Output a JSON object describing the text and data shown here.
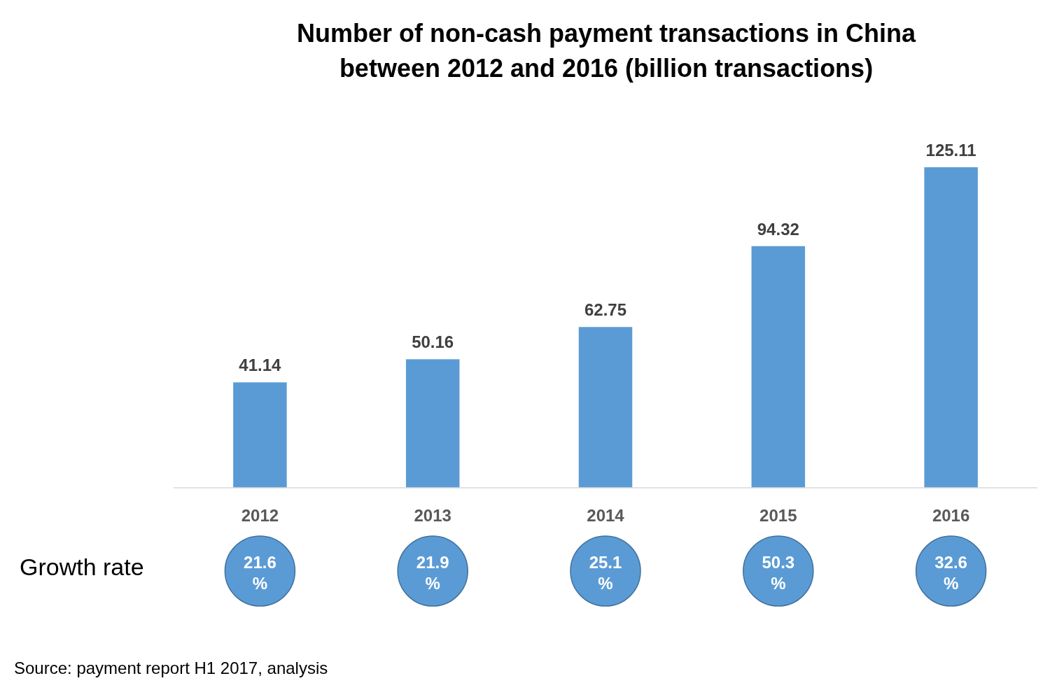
{
  "chart_data": {
    "type": "bar",
    "title": "Number of non-cash payment transactions in China\nbetween 2012 and 2016 (billion transactions)",
    "categories": [
      "2012",
      "2013",
      "2014",
      "2015",
      "2016"
    ],
    "values": [
      41.14,
      50.16,
      62.75,
      94.32,
      125.11
    ],
    "color": "#5b9bd5",
    "data_labels": true,
    "annotations": [
      "Growth rate",
      "21.6 %",
      "21.9 %",
      "25.1 %",
      "50.3 %",
      "32.6 %",
      "Source: payment report H1 2017, analysis"
    ]
  }
}
